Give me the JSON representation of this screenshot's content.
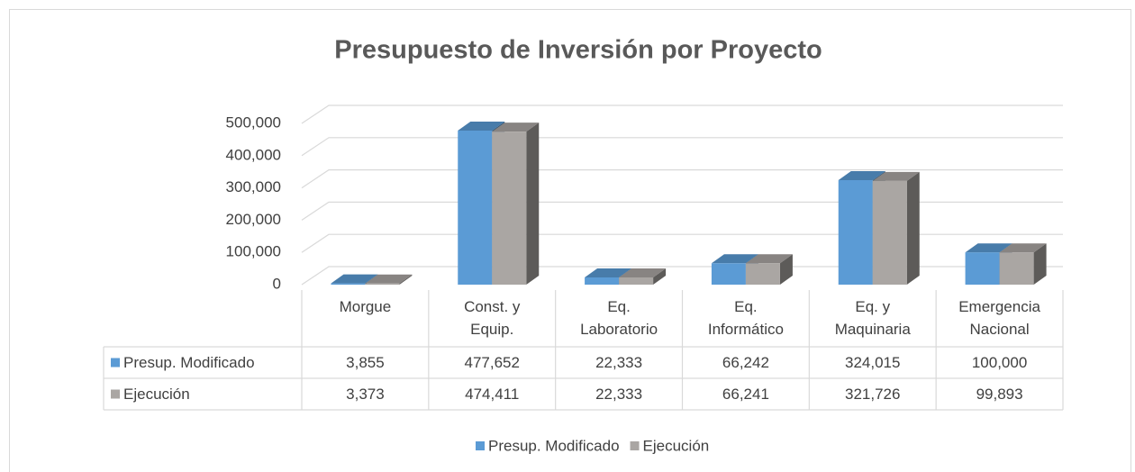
{
  "chart_data": {
    "type": "bar3d",
    "title": "Presupuesto de Inversión por Proyecto",
    "categories": [
      "Morgue",
      "Const. y Equip.",
      "Eq. Laboratorio",
      "Eq. Informático",
      "Eq. y Maquinaria",
      "Emergencia Nacional"
    ],
    "series": [
      {
        "name": "Presup. Modificado",
        "color": "#5b9bd5",
        "values": [
          3855,
          477652,
          22333,
          66242,
          324015,
          100000
        ],
        "value_labels": [
          "3,855",
          "477,652",
          "22,333",
          "66,242",
          "324,015",
          "100,000"
        ]
      },
      {
        "name": "Ejecución",
        "color": "#aaa6a3",
        "values": [
          3373,
          474411,
          22333,
          66241,
          321726,
          99893
        ],
        "value_labels": [
          "3,373",
          "474,411",
          "22,333",
          "66,241",
          "321,726",
          "99,893"
        ]
      }
    ],
    "ylim": [
      0,
      500000
    ],
    "yticks": [
      0,
      {
        "value": 100000,
        "label": "100,000"
      },
      {
        "value": 200000,
        "label": "200,000"
      },
      {
        "value": 300000,
        "label": "300,000"
      },
      {
        "value": 400000,
        "label": "400,000"
      },
      {
        "value": 500000,
        "label": "500,000"
      }
    ],
    "grid": true,
    "legend": "bottom",
    "data_table": true
  }
}
